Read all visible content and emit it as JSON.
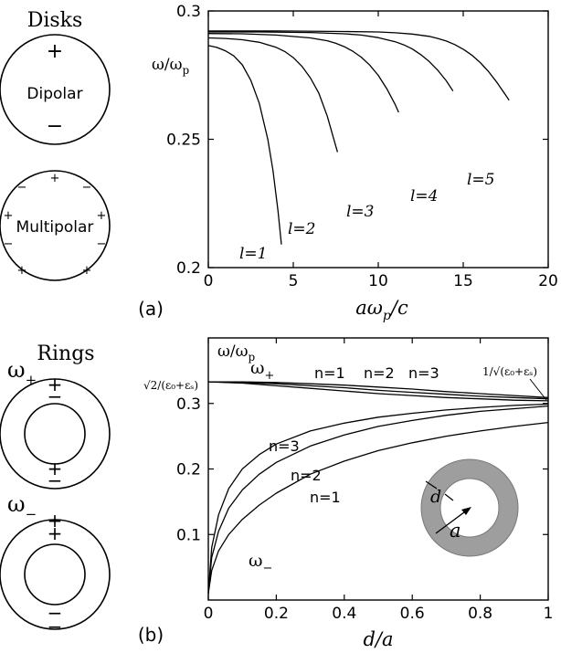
{
  "figure": {
    "panel_a_tag": "(a)",
    "panel_b_tag": "(b)",
    "disks_title": "Disks",
    "rings_title": "Rings",
    "disk_dipolar_label": "Dipolar",
    "disk_multipolar_label": "Multipolar",
    "plus": "+",
    "minus": "−",
    "omega": "ω",
    "plus_sub": "+",
    "minus_sub": "−",
    "inset_d": "d",
    "inset_a": "a"
  },
  "chart_data": [
    {
      "type": "line",
      "panel": "(a)",
      "ylabel": "ω/ω",
      "ylabel_sub": "p",
      "xlabel_main": "aω",
      "xlabel_sub": "p",
      "xlabel_tail": "/c",
      "xlim": [
        0,
        20
      ],
      "ylim": [
        0.2,
        0.3
      ],
      "xticks": [
        0,
        5,
        10,
        15,
        20
      ],
      "xtick_labels": [
        "0",
        "5",
        "10",
        "15",
        "20"
      ],
      "yticks": [
        0.2,
        0.25,
        0.3
      ],
      "ytick_labels": [
        "0.2",
        "0.25",
        "0.3"
      ],
      "grid": false,
      "series": [
        {
          "name": "l=1",
          "x": [
            0,
            0.5,
            1,
            1.5,
            2,
            2.5,
            3,
            3.5,
            3.8,
            4.1,
            4.3
          ],
          "y": [
            0.2865,
            0.2858,
            0.2845,
            0.2825,
            0.279,
            0.273,
            0.264,
            0.25,
            0.238,
            0.222,
            0.209
          ]
        },
        {
          "name": "l=2",
          "x": [
            0,
            1,
            2,
            3,
            4,
            4.5,
            5,
            5.5,
            6,
            6.5,
            7,
            7.3,
            7.6
          ],
          "y": [
            0.2895,
            0.2893,
            0.2888,
            0.2878,
            0.2858,
            0.2842,
            0.2818,
            0.2785,
            0.274,
            0.268,
            0.259,
            0.252,
            0.245
          ]
        },
        {
          "name": "l=3",
          "x": [
            0,
            2,
            4,
            6,
            7,
            7.5,
            8,
            8.5,
            9,
            9.5,
            10,
            10.5,
            11,
            11.2
          ],
          "y": [
            0.2912,
            0.2911,
            0.2906,
            0.2895,
            0.2884,
            0.2874,
            0.2861,
            0.2843,
            0.282,
            0.2789,
            0.2749,
            0.2697,
            0.2635,
            0.2605
          ]
        },
        {
          "name": "l=4",
          "x": [
            0,
            3,
            6,
            8,
            9,
            10,
            11,
            11.5,
            12,
            12.5,
            13,
            13.5,
            14,
            14.4
          ],
          "y": [
            0.2918,
            0.2918,
            0.2916,
            0.2911,
            0.2906,
            0.2896,
            0.288,
            0.2868,
            0.2852,
            0.283,
            0.2803,
            0.2769,
            0.2728,
            0.2688
          ]
        },
        {
          "name": "l=5",
          "x": [
            0,
            4,
            8,
            10,
            11,
            12,
            13,
            13.5,
            14,
            14.5,
            15,
            15.5,
            16,
            16.5,
            17,
            17.5,
            17.7
          ],
          "y": [
            0.2922,
            0.2922,
            0.292,
            0.2918,
            0.2915,
            0.291,
            0.2901,
            0.2893,
            0.2883,
            0.2869,
            0.2851,
            0.2828,
            0.2799,
            0.2763,
            0.272,
            0.2672,
            0.2652
          ]
        }
      ],
      "curve_labels": [
        "l=1",
        "l=2",
        "l=3",
        "l=4",
        "l=5"
      ]
    },
    {
      "type": "line",
      "panel": "(b)",
      "ylabel": "ω/ω",
      "ylabel_sub": "p",
      "xlabel": "d/a",
      "xlim": [
        0,
        1
      ],
      "ylim": [
        0,
        0.4
      ],
      "xticks": [
        0,
        0.2,
        0.4,
        0.6,
        0.8,
        1
      ],
      "xtick_labels": [
        "0",
        "0.2",
        "0.4",
        "0.6",
        "0.8",
        "1"
      ],
      "yticks": [
        0.1,
        0.2,
        0.3
      ],
      "ytick_labels": [
        "0.1",
        "0.2",
        "0.3"
      ],
      "left_annotation": "√2/(ε₀+εₛ)",
      "right_annotation": "1/√(ε₀+εₛ)",
      "omega_plus_label": "ω",
      "omega_minus_label": "ω",
      "grid": false,
      "series": [
        {
          "name": "n=1",
          "branch": "ω+",
          "x": [
            0,
            0.1,
            0.2,
            0.3,
            0.4,
            0.5,
            0.6,
            0.7,
            0.8,
            0.9,
            1.0
          ],
          "y": [
            0.333,
            0.331,
            0.327,
            0.323,
            0.319,
            0.315,
            0.312,
            0.309,
            0.307,
            0.305,
            0.304
          ]
        },
        {
          "name": "n=2",
          "branch": "ω+",
          "x": [
            0,
            0.1,
            0.2,
            0.3,
            0.4,
            0.5,
            0.6,
            0.7,
            0.8,
            0.9,
            1.0
          ],
          "y": [
            0.333,
            0.332,
            0.33,
            0.327,
            0.324,
            0.32,
            0.317,
            0.314,
            0.311,
            0.309,
            0.307
          ]
        },
        {
          "name": "n=3",
          "branch": "ω+",
          "x": [
            0,
            0.1,
            0.2,
            0.3,
            0.4,
            0.5,
            0.6,
            0.7,
            0.8,
            0.9,
            1.0
          ],
          "y": [
            0.333,
            0.333,
            0.332,
            0.33,
            0.328,
            0.325,
            0.322,
            0.318,
            0.315,
            0.312,
            0.309
          ]
        },
        {
          "name": "n=3",
          "branch": "ω−",
          "x": [
            0,
            0.01,
            0.03,
            0.06,
            0.1,
            0.15,
            0.2,
            0.3,
            0.4,
            0.5,
            0.6,
            0.7,
            0.8,
            0.9,
            1.0
          ],
          "y": [
            0.01,
            0.08,
            0.13,
            0.17,
            0.2,
            0.222,
            0.238,
            0.258,
            0.27,
            0.279,
            0.285,
            0.29,
            0.294,
            0.297,
            0.299
          ]
        },
        {
          "name": "n=2",
          "branch": "ω−",
          "x": [
            0,
            0.01,
            0.03,
            0.06,
            0.1,
            0.15,
            0.2,
            0.3,
            0.4,
            0.5,
            0.6,
            0.7,
            0.8,
            0.9,
            1.0
          ],
          "y": [
            0.01,
            0.065,
            0.105,
            0.14,
            0.168,
            0.192,
            0.21,
            0.235,
            0.252,
            0.265,
            0.274,
            0.282,
            0.288,
            0.292,
            0.296
          ]
        },
        {
          "name": "n=1",
          "branch": "ω−",
          "x": [
            0,
            0.01,
            0.03,
            0.06,
            0.1,
            0.15,
            0.2,
            0.3,
            0.4,
            0.5,
            0.6,
            0.7,
            0.8,
            0.9,
            1.0
          ],
          "y": [
            0.01,
            0.045,
            0.075,
            0.1,
            0.123,
            0.145,
            0.163,
            0.192,
            0.212,
            0.228,
            0.24,
            0.25,
            0.258,
            0.265,
            0.271
          ]
        }
      ],
      "curve_labels": [
        "n=1",
        "n=2",
        "n=3",
        "n=3",
        "n=2",
        "n=1"
      ]
    }
  ]
}
